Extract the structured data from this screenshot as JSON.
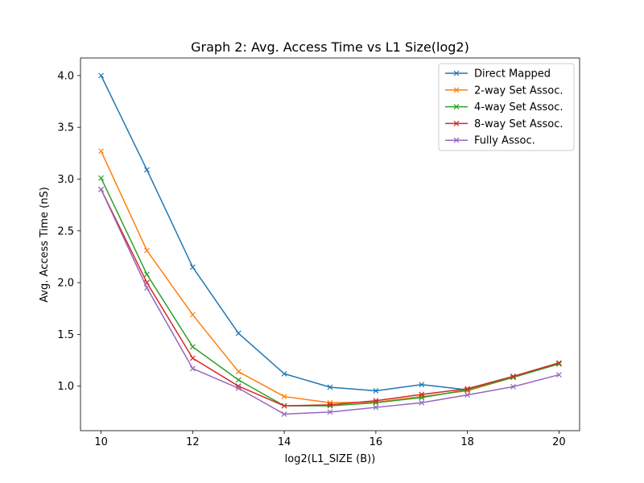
{
  "chart_data": {
    "type": "line",
    "title": "Graph 2: Avg. Access Time vs L1 Size(log2)",
    "xlabel": "log2(L1_SIZE (B))",
    "ylabel": "Avg. Access Time (nS)",
    "x": [
      10,
      11,
      12,
      13,
      14,
      15,
      16,
      17,
      18,
      19,
      20
    ],
    "xlim": [
      9.55,
      20.45
    ],
    "ylim": [
      0.57,
      4.17
    ],
    "xticks": [
      10,
      12,
      14,
      16,
      18,
      20
    ],
    "yticks": [
      "1.0",
      "1.5",
      "2.0",
      "2.5",
      "3.0",
      "3.5",
      "4.0"
    ],
    "grid": false,
    "legend_position": "top-right",
    "marker": "x",
    "series": [
      {
        "name": "Direct Mapped",
        "color": "#1f77b4",
        "values": [
          4.0,
          3.09,
          2.15,
          1.51,
          1.12,
          0.99,
          0.955,
          1.015,
          0.965,
          1.09,
          1.215
        ]
      },
      {
        "name": "2-way Set Assoc.",
        "color": "#ff7f0e",
        "values": [
          3.27,
          2.31,
          1.69,
          1.14,
          0.9,
          0.84,
          0.845,
          0.9,
          0.955,
          1.085,
          1.215
        ]
      },
      {
        "name": "4-way Set Assoc.",
        "color": "#2ca02c",
        "values": [
          3.01,
          2.08,
          1.38,
          1.06,
          0.81,
          0.81,
          0.84,
          0.89,
          0.965,
          1.085,
          1.215
        ]
      },
      {
        "name": "8-way Set Assoc.",
        "color": "#d62728",
        "values": [
          2.9,
          2.0,
          1.27,
          1.0,
          0.81,
          0.82,
          0.86,
          0.92,
          0.975,
          1.095,
          1.225
        ]
      },
      {
        "name": "Fully Assoc.",
        "color": "#9467bd",
        "values": [
          2.9,
          1.95,
          1.17,
          0.98,
          0.73,
          0.75,
          0.795,
          0.84,
          0.915,
          0.995,
          1.11
        ]
      }
    ]
  }
}
